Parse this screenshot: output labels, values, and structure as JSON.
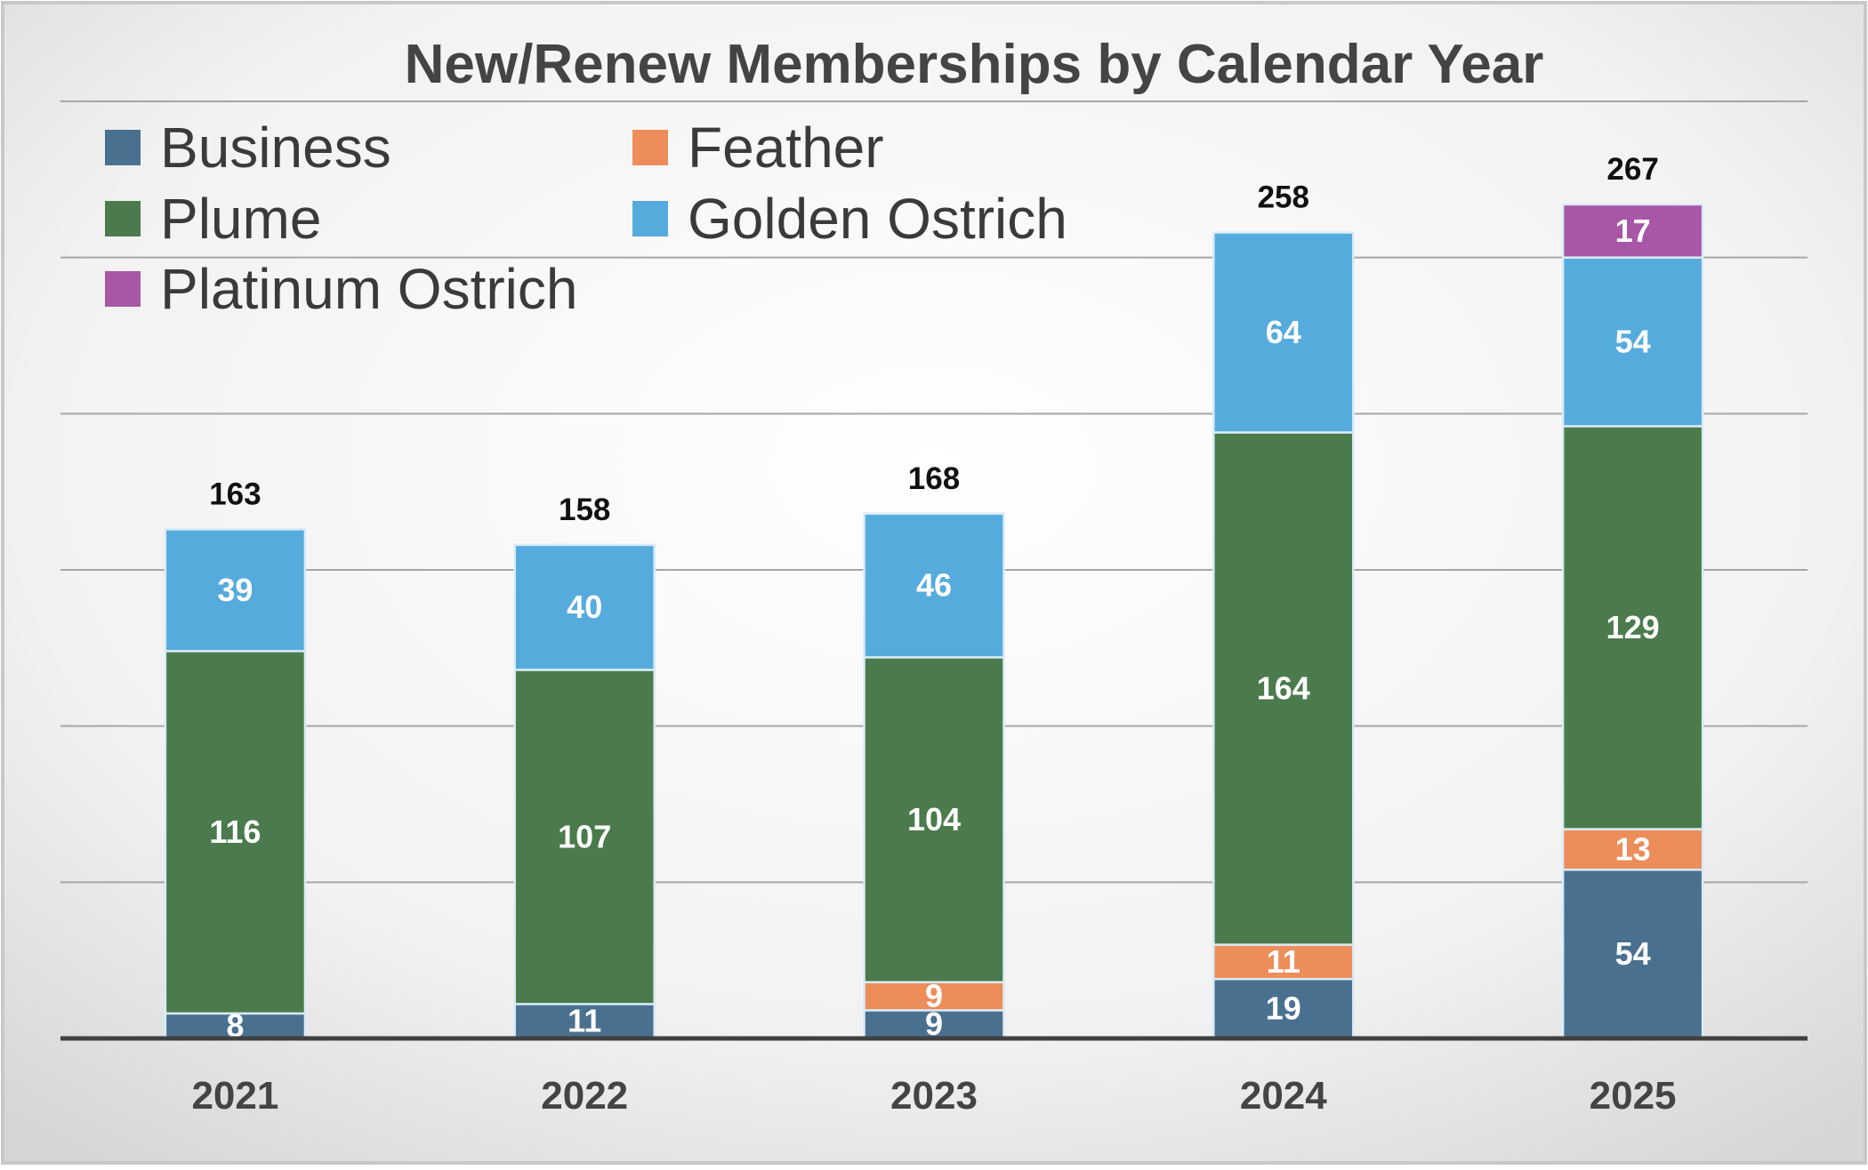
{
  "chart_data": {
    "type": "bar",
    "stacked": true,
    "title": "New/Renew Memberships by Calendar Year",
    "xlabel": "",
    "ylabel": "",
    "categories": [
      "2021",
      "2022",
      "2023",
      "2024",
      "2025"
    ],
    "series": [
      {
        "name": "Business",
        "color": "#4a7090",
        "values": [
          8,
          11,
          9,
          19,
          54
        ]
      },
      {
        "name": "Feather",
        "color": "#ed8d59",
        "values": [
          0,
          0,
          9,
          11,
          13
        ]
      },
      {
        "name": "Plume",
        "color": "#4b7b4c",
        "values": [
          116,
          107,
          104,
          164,
          129
        ]
      },
      {
        "name": "Golden Ostrich",
        "color": "#56abdd",
        "values": [
          39,
          40,
          46,
          64,
          54
        ]
      },
      {
        "name": "Platinum Ostrich",
        "color": "#a857a6",
        "values": [
          0,
          0,
          0,
          0,
          17
        ]
      }
    ],
    "totals": [
      163,
      158,
      168,
      258,
      267
    ],
    "ylim": [
      0,
      300
    ],
    "gridlines": true,
    "legend_position": "top-left",
    "colors": {
      "background_light": "#ffffff",
      "background_dark": "#d9d9d9",
      "grid": "#a6a6a6",
      "axis": "#404040",
      "frame": "#c8c8c8"
    }
  }
}
